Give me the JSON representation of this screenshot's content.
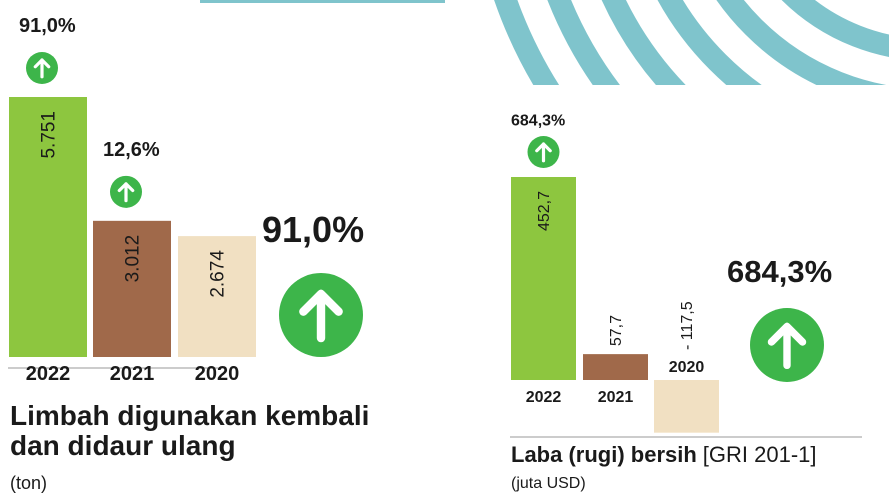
{
  "chart_data": [
    {
      "type": "bar",
      "title": [
        "Limbah digunakan kembali",
        "dan didaur ulang"
      ],
      "unit": "(ton)",
      "categories": [
        "2022",
        "2021",
        "2020"
      ],
      "values": [
        5751,
        3012,
        2674
      ],
      "value_labels": [
        "5.751",
        "3.012",
        "2.674"
      ],
      "colors": [
        "#8dc63f",
        "#a0694a",
        "#f1e0c2"
      ],
      "annotations": [
        "91,0%",
        "12,6%",
        null
      ],
      "highlight": "91,0%"
    },
    {
      "type": "bar",
      "title": "Laba (rugi) bersih",
      "reference": "[GRI 201-1]",
      "unit": "(juta USD)",
      "categories": [
        "2022",
        "2021",
        "2020"
      ],
      "values": [
        452.7,
        57.7,
        -117.5
      ],
      "value_labels": [
        "452,7",
        "57,7",
        "- 117,5"
      ],
      "colors": [
        "#8dc63f",
        "#a0694a",
        "#f1e0c2"
      ],
      "annotations": [
        "684,3%",
        null,
        null
      ],
      "highlight": "684,3%"
    }
  ]
}
